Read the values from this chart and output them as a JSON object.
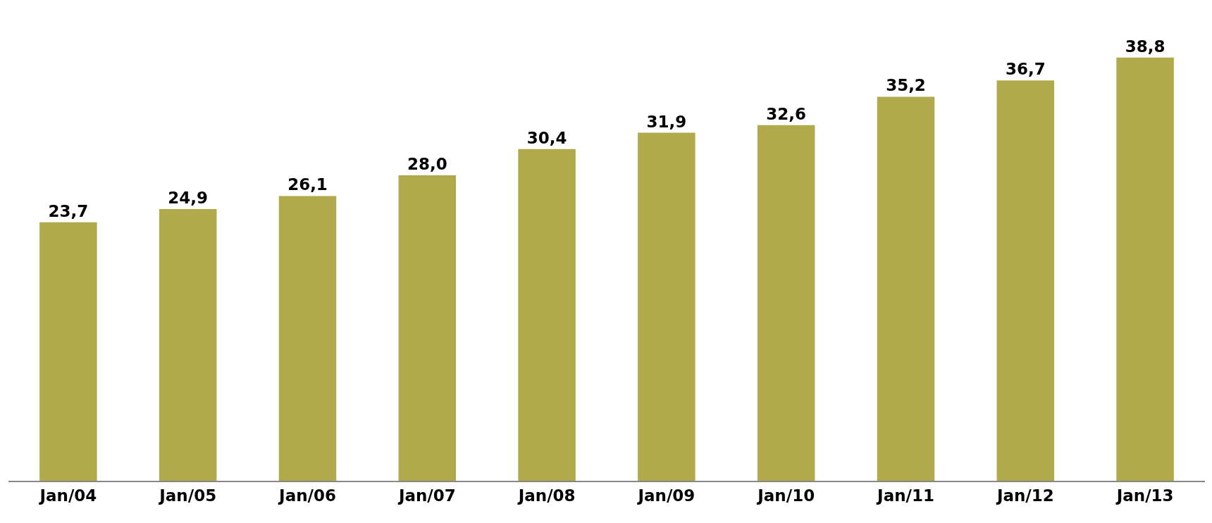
{
  "chart_data": {
    "type": "bar",
    "categories": [
      "Jan/04",
      "Jan/05",
      "Jan/06",
      "Jan/07",
      "Jan/08",
      "Jan/09",
      "Jan/10",
      "Jan/11",
      "Jan/12",
      "Jan/13"
    ],
    "values": [
      23.7,
      24.9,
      26.1,
      28.0,
      30.4,
      31.9,
      32.6,
      35.2,
      36.7,
      38.8
    ],
    "value_labels": [
      "23,7",
      "24,9",
      "26,1",
      "28,0",
      "30,4",
      "31,9",
      "32,6",
      "35,2",
      "36,7",
      "38,8"
    ],
    "color": "#b0aa4c",
    "grid": false,
    "legend": false
  }
}
